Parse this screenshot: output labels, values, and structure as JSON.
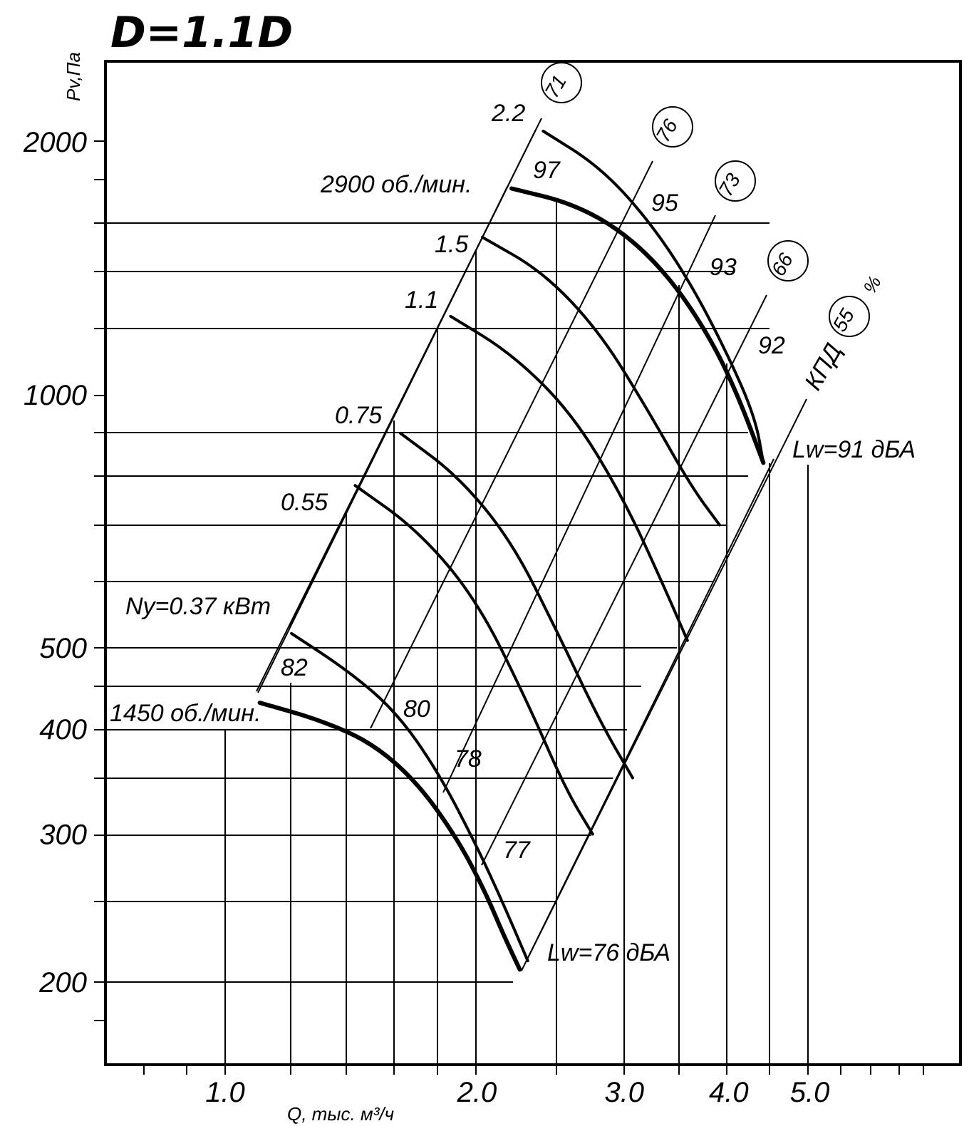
{
  "title": "D=1.1D",
  "chart_data": {
    "type": "line",
    "title": "D=1.1D",
    "xlabel": "Q, тыс. м³/ч",
    "ylabel": "Pv,Па",
    "x_scale": "log",
    "y_scale": "log",
    "xlim": [
      0.5,
      7.2
    ],
    "ylim": [
      160,
      2900
    ],
    "x_tick_labels": [
      {
        "value": 1.0,
        "label": "1.0"
      },
      {
        "value": 2.0,
        "label": "2.0"
      },
      {
        "value": 3.0,
        "label": "3.0"
      },
      {
        "value": 4.0,
        "label": "4.0"
      },
      {
        "value": 5.0,
        "label": "5.0"
      }
    ],
    "y_tick_labels": [
      {
        "value": 200,
        "label": "200"
      },
      {
        "value": 300,
        "label": "300"
      },
      {
        "value": 400,
        "label": "400"
      },
      {
        "value": 500,
        "label": "500"
      },
      {
        "value": 1000,
        "label": "1000"
      },
      {
        "value": 2000,
        "label": "2000"
      }
    ],
    "series": [
      {
        "name": "1450 об./мин.",
        "bold": true,
        "x": [
          1.1,
          1.3,
          1.5,
          1.7,
          1.9,
          2.05,
          2.15,
          2.25
        ],
        "y": [
          430,
          410,
          385,
          345,
          295,
          255,
          228,
          207
        ]
      },
      {
        "name": "Ny=0.37 кВт",
        "bold": false,
        "x": [
          1.2,
          1.4,
          1.6,
          1.8,
          2.0,
          2.15,
          2.3
        ],
        "y": [
          520,
          470,
          420,
          355,
          290,
          248,
          212
        ]
      },
      {
        "name": "0.55",
        "bold": false,
        "x": [
          1.43,
          1.7,
          2.0,
          2.3,
          2.55,
          2.75
        ],
        "y": [
          780,
          690,
          570,
          430,
          340,
          300
        ]
      },
      {
        "name": "0.75",
        "bold": false,
        "x": [
          1.62,
          1.9,
          2.2,
          2.5,
          2.8,
          3.07
        ],
        "y": [
          900,
          800,
          670,
          520,
          410,
          350
        ]
      },
      {
        "name": "1.1",
        "bold": false,
        "x": [
          1.86,
          2.2,
          2.6,
          3.0,
          3.35,
          3.57
        ],
        "y": [
          1240,
          1120,
          950,
          750,
          590,
          510
        ]
      },
      {
        "name": "1.5",
        "bold": false,
        "x": [
          2.03,
          2.4,
          2.8,
          3.2,
          3.6,
          3.9
        ],
        "y": [
          1540,
          1400,
          1190,
          960,
          780,
          700
        ]
      },
      {
        "name": "2900 об./мин.",
        "bold": true,
        "x": [
          2.2,
          2.6,
          3.0,
          3.4,
          3.8,
          4.1,
          4.4
        ],
        "y": [
          1760,
          1690,
          1560,
          1380,
          1170,
          1000,
          830
        ]
      },
      {
        "name": "2.2",
        "bold": false,
        "x": [
          2.4,
          2.8,
          3.2,
          3.6,
          4.0,
          4.3,
          4.4
        ],
        "y": [
          2060,
          1870,
          1620,
          1360,
          1110,
          940,
          830
        ]
      }
    ],
    "power_labels": [
      "Ny=0.37 кВт",
      "0.55",
      "0.75",
      "1.1",
      "1.5",
      "2.2"
    ],
    "speed_labels": [
      "1450 об./мин.",
      "2900 об./мин."
    ],
    "efficiency_label": "КПД",
    "efficiency_values": [
      "71",
      "76",
      "73",
      "66",
      "55",
      "%"
    ],
    "sound_labels_top": [
      "97",
      "95",
      "93",
      "92"
    ],
    "sound_labels_bottom": [
      "82",
      "80",
      "78",
      "77"
    ],
    "lw_labels": [
      "Lw=91 дБА",
      "Lw=76 дБА"
    ],
    "grid": true
  }
}
